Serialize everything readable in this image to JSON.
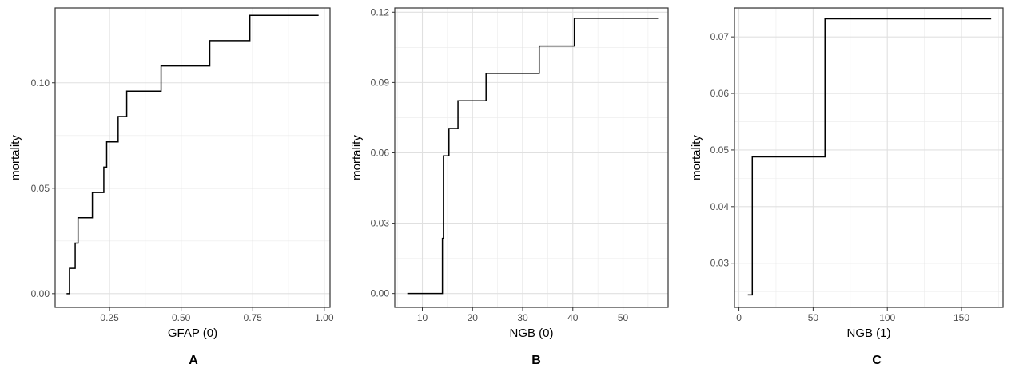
{
  "chart_data": [
    {
      "type": "line",
      "panel_label": "A",
      "xlabel": "GFAP (0)",
      "ylabel": "mortality",
      "xlim": [
        0.06,
        1.02
      ],
      "ylim": [
        -0.0065,
        0.1355
      ],
      "x_ticks": [
        0.25,
        0.5,
        0.75,
        1.0
      ],
      "x_tick_labels": [
        "0.25",
        "0.50",
        "0.75",
        "1.00"
      ],
      "y_ticks": [
        0.0,
        0.05,
        0.1
      ],
      "y_tick_labels": [
        "0.00",
        "0.05",
        "0.10"
      ],
      "step": true,
      "series": [
        {
          "x": [
            0.1,
            0.11,
            0.13,
            0.14,
            0.19,
            0.23,
            0.24,
            0.24,
            0.28,
            0.3,
            0.31,
            0.43,
            0.6,
            0.74,
            0.98
          ],
          "y": [
            0.0,
            0.012,
            0.024,
            0.036,
            0.048,
            0.06,
            0.072,
            0.072,
            0.084,
            0.084,
            0.096,
            0.108,
            0.12,
            0.132,
            0.132
          ]
        }
      ],
      "grid": true
    },
    {
      "type": "line",
      "panel_label": "B",
      "xlabel": "NGB (0)",
      "ylabel": "mortality",
      "xlim": [
        4.5,
        59
      ],
      "ylim": [
        -0.0059,
        0.1218
      ],
      "x_ticks": [
        10,
        20,
        30,
        40,
        50
      ],
      "x_tick_labels": [
        "10",
        "20",
        "30",
        "40",
        "50"
      ],
      "y_ticks": [
        0.0,
        0.03,
        0.06,
        0.09,
        0.12
      ],
      "y_tick_labels": [
        "0.00",
        "0.03",
        "0.06",
        "0.09",
        "0.12"
      ],
      "step": true,
      "series": [
        {
          "x": [
            7,
            14,
            14.2,
            14.5,
            15.3,
            17.1,
            22.7,
            33.3,
            40.3,
            57
          ],
          "y": [
            0.0,
            0.0235,
            0.0587,
            0.0587,
            0.0704,
            0.0822,
            0.0939,
            0.1056,
            0.1174,
            0.1174
          ]
        }
      ],
      "grid": true
    },
    {
      "type": "line",
      "panel_label": "C",
      "xlabel": "NGB (1)",
      "ylabel": "mortality",
      "xlim": [
        -3,
        178
      ],
      "ylim": [
        0.0222,
        0.0751
      ],
      "x_ticks": [
        0,
        50,
        100,
        150
      ],
      "x_tick_labels": [
        "0",
        "50",
        "100",
        "150"
      ],
      "y_ticks": [
        0.03,
        0.04,
        0.05,
        0.06,
        0.07
      ],
      "y_tick_labels": [
        "0.03",
        "0.04",
        "0.05",
        "0.06",
        "0.07"
      ],
      "step": true,
      "series": [
        {
          "x": [
            6,
            9,
            58,
            170
          ],
          "y": [
            0.0244,
            0.0488,
            0.0732,
            0.0732
          ]
        }
      ],
      "grid": true
    }
  ]
}
